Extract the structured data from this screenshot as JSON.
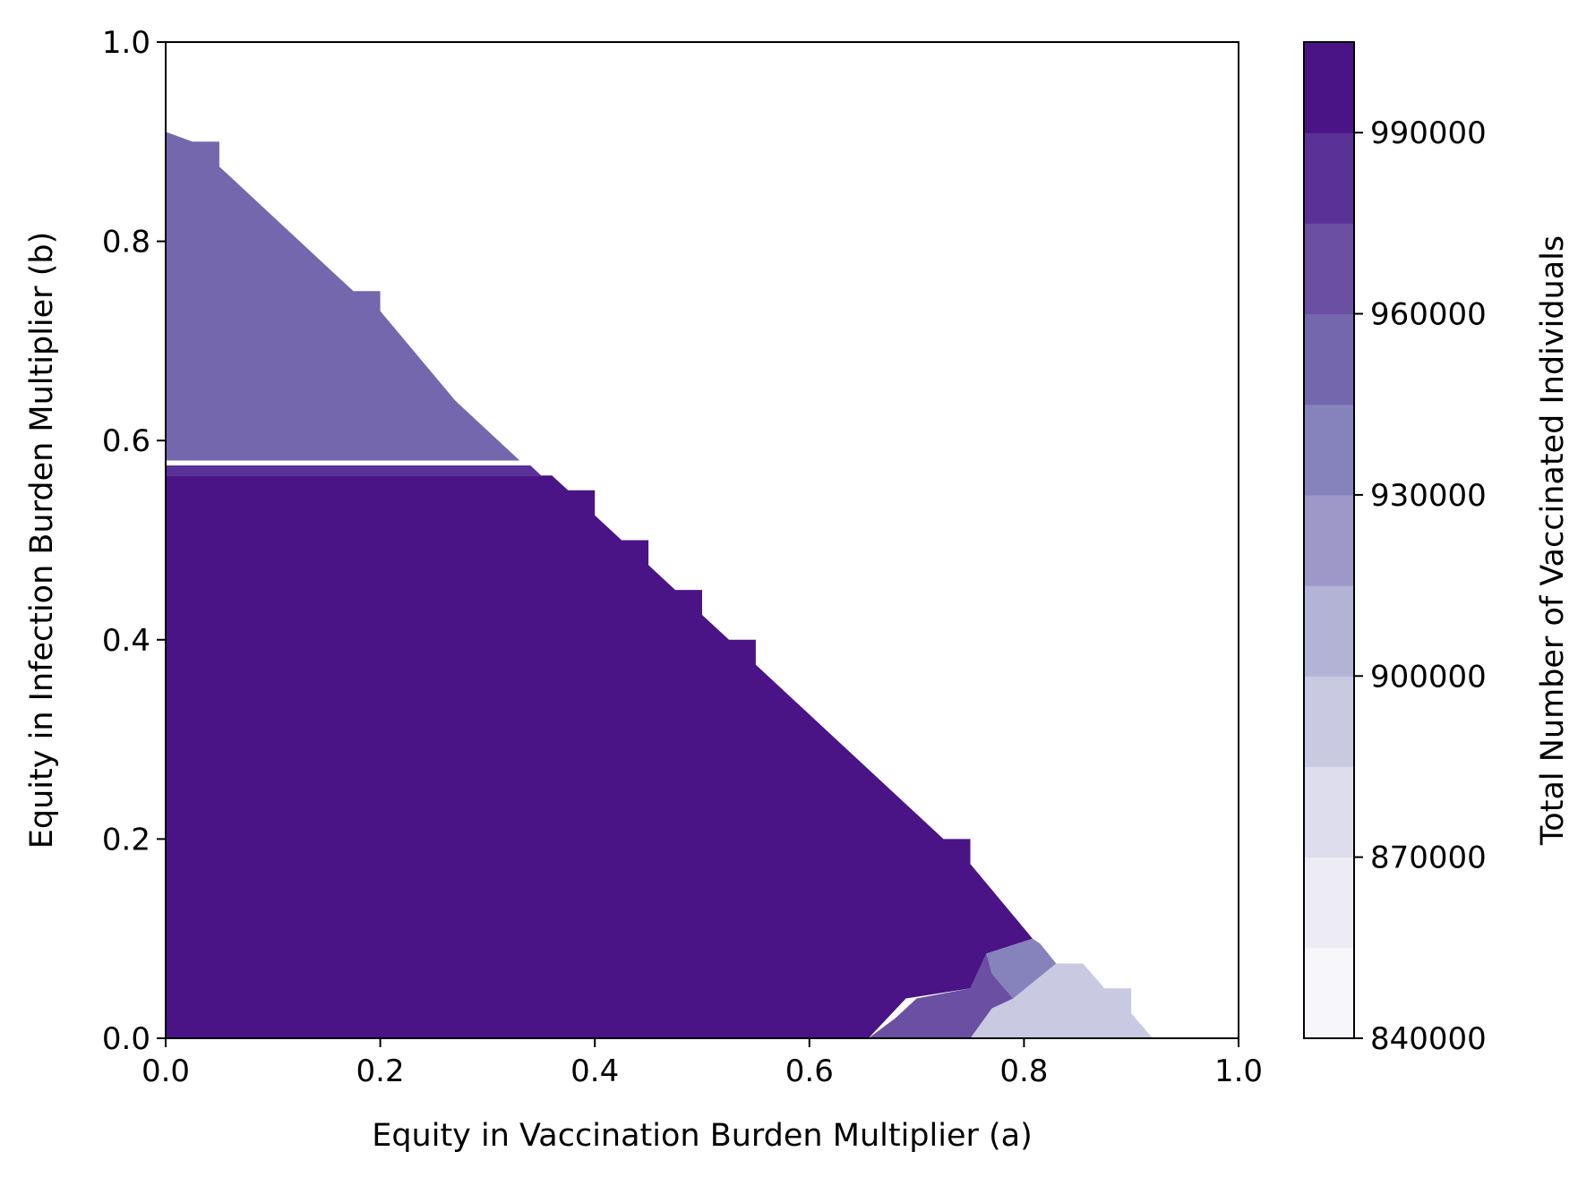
{
  "chart_data": {
    "type": "heatmap",
    "title": "",
    "xlabel": "Equity in Vaccination Burden Multiplier (a)",
    "ylabel": "Equity in Infection Burden Multiplier (b)",
    "xlim": [
      0.0,
      1.0
    ],
    "ylim": [
      0.0,
      1.0
    ],
    "x_ticks": [
      "0.0",
      "0.2",
      "0.4",
      "0.6",
      "0.8",
      "1.0"
    ],
    "y_ticks": [
      "0.0",
      "0.2",
      "0.4",
      "0.6",
      "0.8",
      "1.0"
    ],
    "grid": false,
    "colorbar": {
      "label": "Total Number of Vaccinated Individuals",
      "range": [
        840000,
        1005000
      ],
      "tick_values": [
        840000,
        870000,
        900000,
        930000,
        960000,
        990000
      ],
      "tick_labels": [
        "840000",
        "870000",
        "900000",
        "930000",
        "960000",
        "990000"
      ],
      "levels": [
        840000,
        855000,
        870000,
        885000,
        900000,
        915000,
        930000,
        945000,
        960000,
        975000,
        990000,
        1005000
      ],
      "colors": [
        "#f7f6fa",
        "#edebf4",
        "#dedded",
        "#c9c9e2",
        "#b3b3d6",
        "#9d98c7",
        "#8683bc",
        "#7567ae",
        "#6a4fa3",
        "#5a3196",
        "#4a1486"
      ]
    },
    "regions": [
      {
        "level": 955000,
        "polygon": [
          [
            0.0,
            0.58
          ],
          [
            0.33,
            0.58
          ],
          [
            0.27,
            0.64
          ],
          [
            0.2,
            0.73
          ],
          [
            0.2,
            0.75
          ],
          [
            0.175,
            0.75
          ],
          [
            0.05,
            0.875
          ],
          [
            0.05,
            0.9
          ],
          [
            0.025,
            0.9
          ],
          [
            0.0,
            0.91
          ]
        ]
      },
      {
        "level": 985000,
        "polygon": [
          [
            0.0,
            0.565
          ],
          [
            0.35,
            0.565
          ],
          [
            0.34,
            0.575
          ],
          [
            0.0,
            0.575
          ]
        ]
      },
      {
        "level": 995000,
        "polygon": [
          [
            0.0,
            0.0
          ],
          [
            0.655,
            0.0
          ],
          [
            0.69,
            0.04
          ],
          [
            0.75,
            0.05
          ],
          [
            0.765,
            0.085
          ],
          [
            0.808,
            0.1
          ],
          [
            0.75,
            0.175
          ],
          [
            0.75,
            0.2
          ],
          [
            0.725,
            0.2
          ],
          [
            0.55,
            0.375
          ],
          [
            0.55,
            0.4
          ],
          [
            0.525,
            0.4
          ],
          [
            0.5,
            0.425
          ],
          [
            0.5,
            0.45
          ],
          [
            0.475,
            0.45
          ],
          [
            0.45,
            0.475
          ],
          [
            0.45,
            0.5
          ],
          [
            0.425,
            0.5
          ],
          [
            0.4,
            0.525
          ],
          [
            0.4,
            0.55
          ],
          [
            0.375,
            0.55
          ],
          [
            0.36,
            0.565
          ],
          [
            0.0,
            0.565
          ]
        ]
      },
      {
        "level": 885000,
        "polygon": [
          [
            0.75,
            0.0
          ],
          [
            0.92,
            0.0
          ],
          [
            0.9,
            0.025
          ],
          [
            0.9,
            0.05
          ],
          [
            0.875,
            0.05
          ],
          [
            0.855,
            0.075
          ],
          [
            0.83,
            0.075
          ],
          [
            0.79,
            0.04
          ],
          [
            0.77,
            0.03
          ]
        ]
      },
      {
        "level": 960000,
        "polygon": [
          [
            0.655,
            0.0
          ],
          [
            0.75,
            0.0
          ],
          [
            0.77,
            0.03
          ],
          [
            0.79,
            0.04
          ],
          [
            0.77,
            0.065
          ],
          [
            0.765,
            0.085
          ],
          [
            0.75,
            0.05
          ],
          [
            0.7,
            0.04
          ],
          [
            0.68,
            0.02
          ]
        ]
      },
      {
        "level": 940000,
        "polygon": [
          [
            0.79,
            0.04
          ],
          [
            0.83,
            0.075
          ],
          [
            0.815,
            0.095
          ],
          [
            0.808,
            0.1
          ],
          [
            0.765,
            0.085
          ],
          [
            0.77,
            0.065
          ]
        ]
      }
    ]
  }
}
